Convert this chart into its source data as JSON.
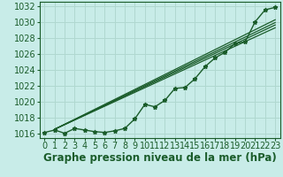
{
  "xlabel": "Graphe pression niveau de la mer (hPa)",
  "background_color": "#c8ece8",
  "grid_color": "#b0d8d0",
  "line_color": "#1a5c2a",
  "xlim": [
    -0.5,
    23.5
  ],
  "ylim": [
    1015.5,
    1032.5
  ],
  "yticks": [
    1016,
    1018,
    1020,
    1022,
    1024,
    1026,
    1028,
    1030,
    1032
  ],
  "xticks": [
    0,
    1,
    2,
    3,
    4,
    5,
    6,
    7,
    8,
    9,
    10,
    11,
    12,
    13,
    14,
    15,
    16,
    17,
    18,
    19,
    20,
    21,
    22,
    23
  ],
  "x": [
    0,
    1,
    2,
    3,
    4,
    5,
    6,
    7,
    8,
    9,
    10,
    11,
    12,
    13,
    14,
    15,
    16,
    17,
    18,
    19,
    20,
    21,
    22,
    23
  ],
  "y": [
    1016.2,
    1016.5,
    1016.1,
    1016.7,
    1016.5,
    1016.3,
    1016.2,
    1016.4,
    1016.7,
    1017.9,
    1019.7,
    1019.4,
    1020.2,
    1021.7,
    1021.8,
    1022.9,
    1024.4,
    1025.5,
    1026.2,
    1027.3,
    1027.5,
    1030.0,
    1031.5,
    1031.8
  ],
  "marker": "*",
  "markersize": 3.5,
  "xlabel_fontsize": 8.5,
  "tick_fontsize": 7,
  "trend_offsets": [
    -0.5,
    -0.15,
    0.15,
    0.5
  ],
  "trend_pivot_x": 1.0,
  "trend_pivot_y": 1016.6
}
